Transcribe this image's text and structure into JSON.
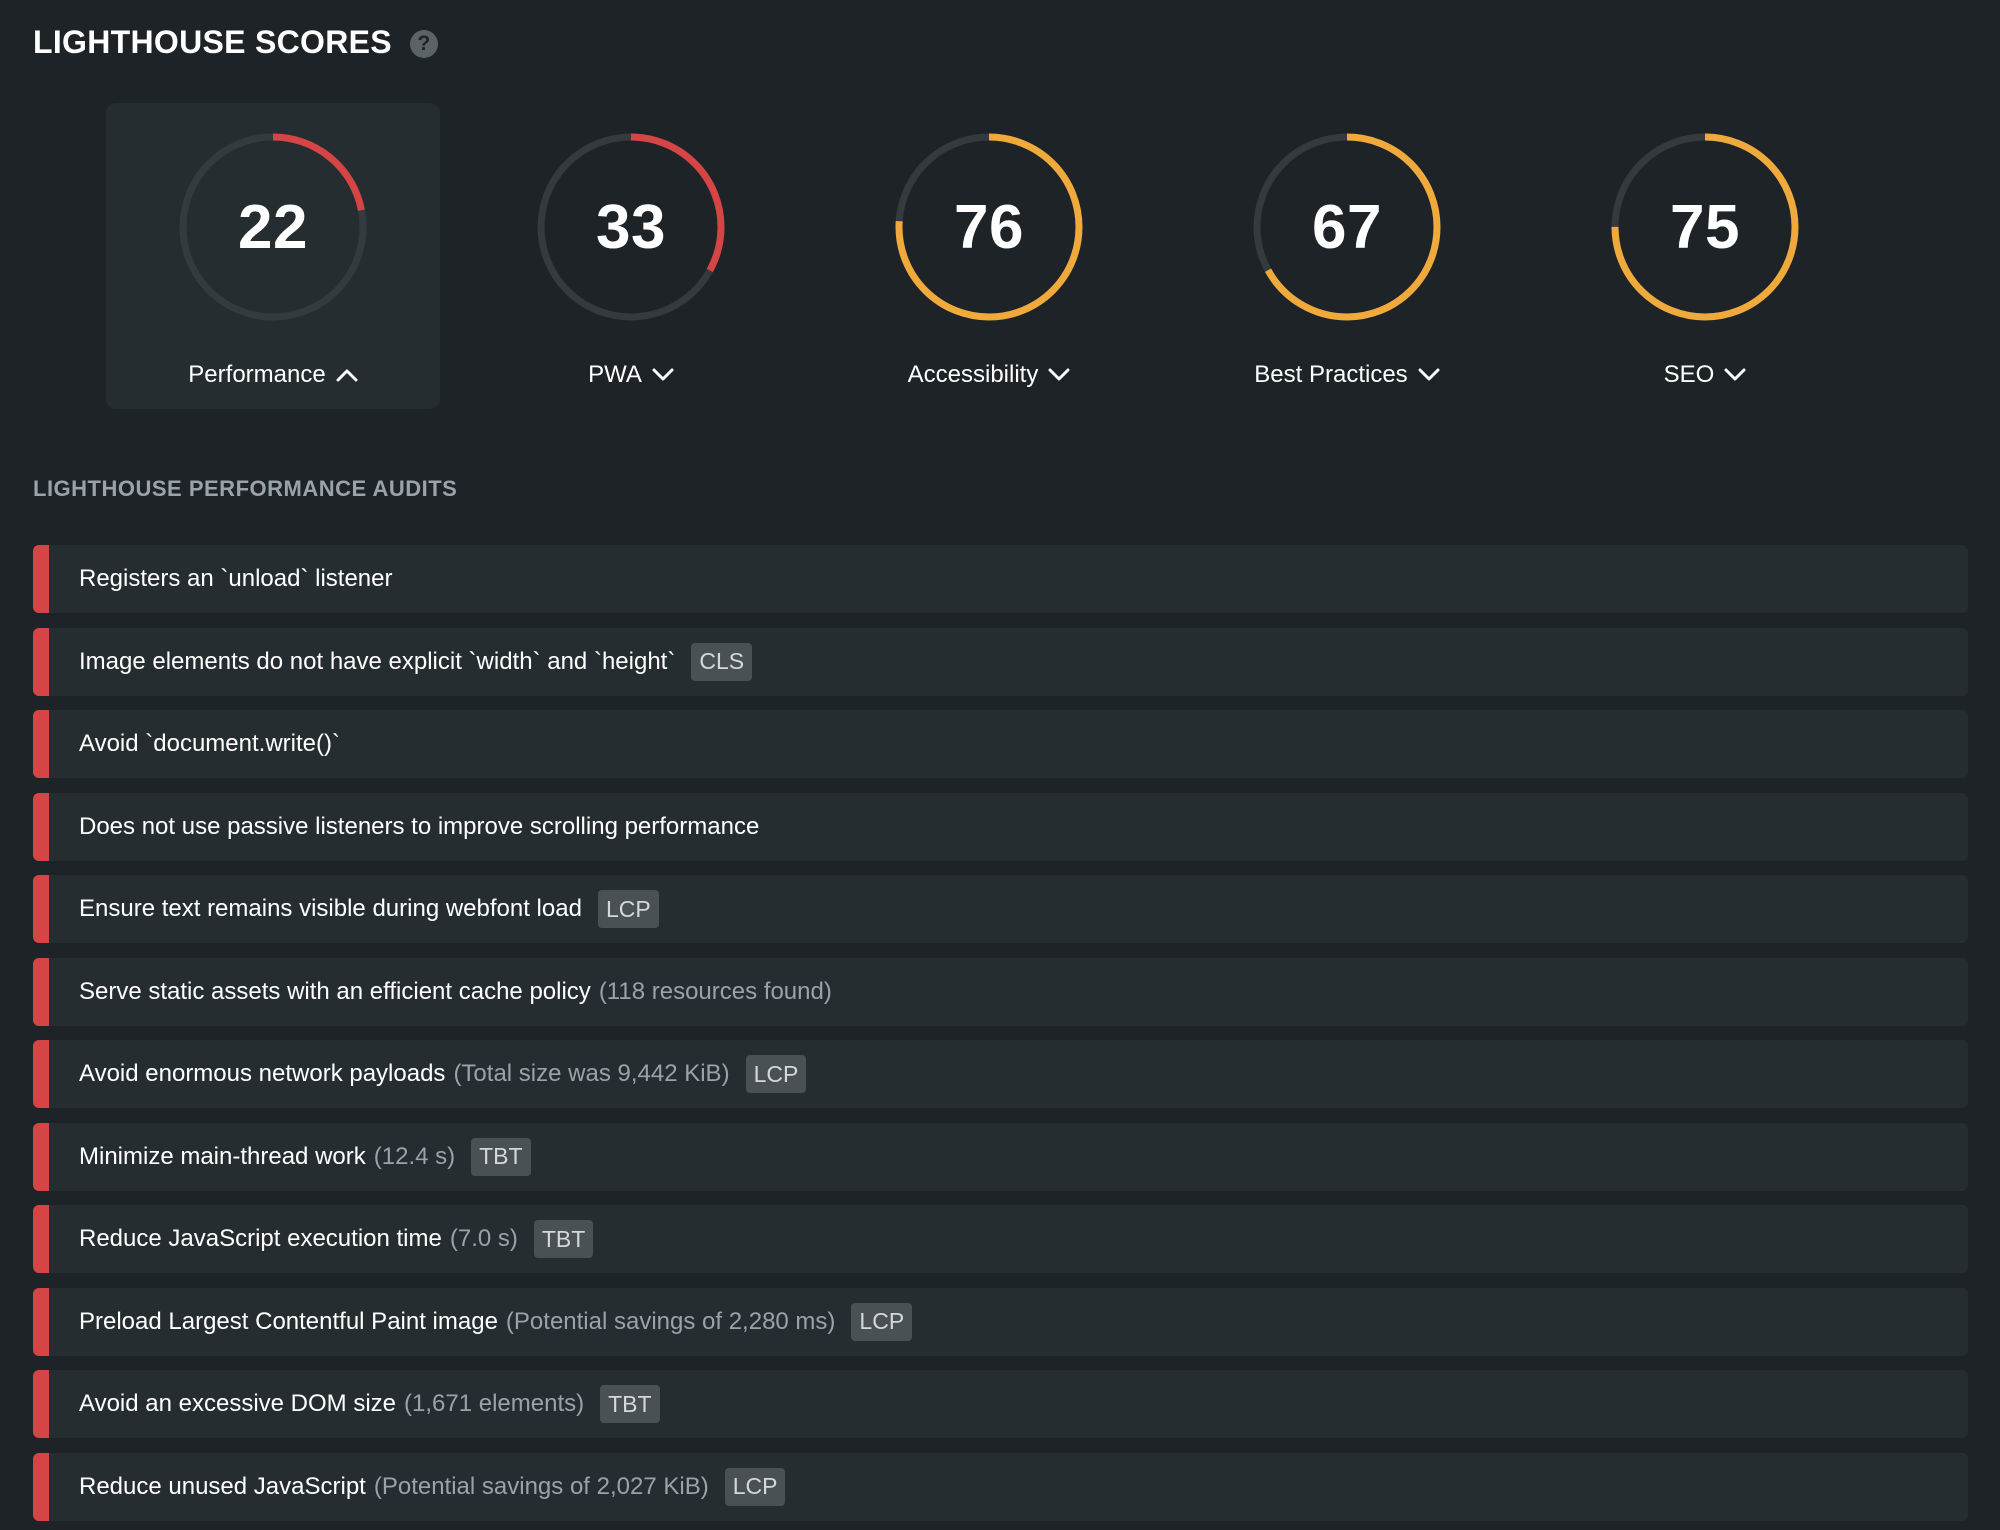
{
  "header": {
    "title": "LIGHTHOUSE SCORES",
    "help_icon": "question-circle-icon"
  },
  "colors": {
    "background": "#1d2326",
    "card": "#262d31",
    "track": "#343b3f",
    "poor": "#d64545",
    "average": "#f0a93b",
    "tag": "#4a5155"
  },
  "scores": [
    {
      "value": "22",
      "label": "Performance",
      "expanded": true,
      "status": "poor",
      "icon": "chevron-up-icon"
    },
    {
      "value": "33",
      "label": "PWA",
      "expanded": false,
      "status": "poor",
      "icon": "chevron-down-icon"
    },
    {
      "value": "76",
      "label": "Accessibility",
      "expanded": false,
      "status": "average",
      "icon": "chevron-down-icon"
    },
    {
      "value": "67",
      "label": "Best Practices",
      "expanded": false,
      "status": "average",
      "icon": "chevron-down-icon"
    },
    {
      "value": "75",
      "label": "SEO",
      "expanded": false,
      "status": "average",
      "icon": "chevron-down-icon"
    }
  ],
  "audits_title": "LIGHTHOUSE PERFORMANCE AUDITS",
  "audits": [
    {
      "text": "Registers an `unload` listener",
      "detail": "",
      "tag": ""
    },
    {
      "text": "Image elements do not have explicit `width` and `height`",
      "detail": "",
      "tag": "CLS"
    },
    {
      "text": "Avoid `document.write()`",
      "detail": "",
      "tag": ""
    },
    {
      "text": "Does not use passive listeners to improve scrolling performance",
      "detail": "",
      "tag": ""
    },
    {
      "text": "Ensure text remains visible during webfont load",
      "detail": "",
      "tag": "LCP"
    },
    {
      "text": "Serve static assets with an efficient cache policy",
      "detail": "(118 resources found)",
      "tag": ""
    },
    {
      "text": "Avoid enormous network payloads",
      "detail": "(Total size was 9,442 KiB)",
      "tag": "LCP"
    },
    {
      "text": "Minimize main-thread work",
      "detail": "(12.4 s)",
      "tag": "TBT"
    },
    {
      "text": "Reduce JavaScript execution time",
      "detail": "(7.0 s)",
      "tag": "TBT"
    },
    {
      "text": "Preload Largest Contentful Paint image",
      "detail": "(Potential savings of 2,280 ms)",
      "tag": "LCP"
    },
    {
      "text": "Avoid an excessive DOM size",
      "detail": "(1,671 elements)",
      "tag": "TBT"
    },
    {
      "text": "Reduce unused JavaScript",
      "detail": "(Potential savings of 2,027 KiB)",
      "tag": "LCP"
    }
  ]
}
